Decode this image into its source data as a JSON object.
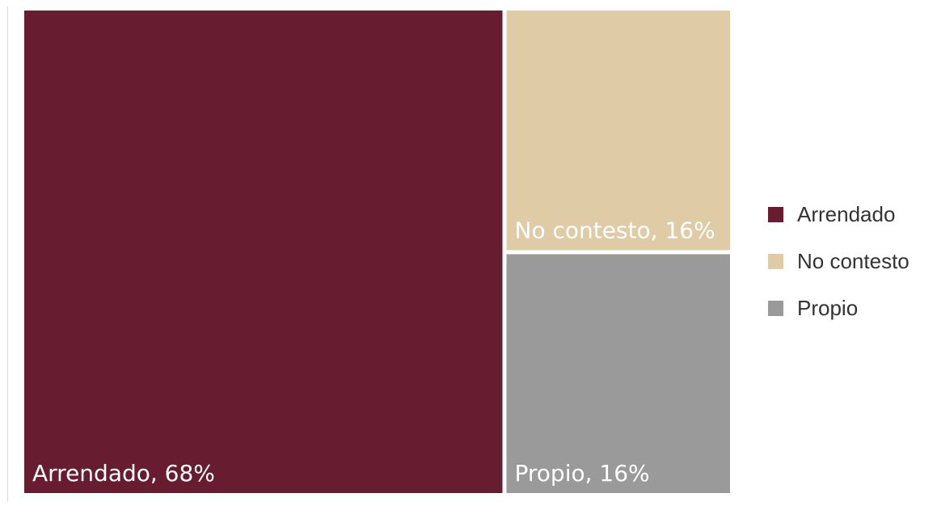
{
  "chart_data": {
    "type": "treemap",
    "title": "",
    "series": [
      {
        "name": "Arrendado",
        "value": 68,
        "color": "#681c30",
        "label": "Arrendado, 68%"
      },
      {
        "name": "No contesto",
        "value": 16,
        "color": "#dfcba5",
        "label": "No contesto, 16%"
      },
      {
        "name": "Propio",
        "value": 16,
        "color": "#9a9a9b",
        "label": "Propio, 16%"
      }
    ],
    "legend": {
      "position": "right",
      "entries": [
        "Arrendado",
        "No contesto",
        "Propio"
      ]
    }
  }
}
